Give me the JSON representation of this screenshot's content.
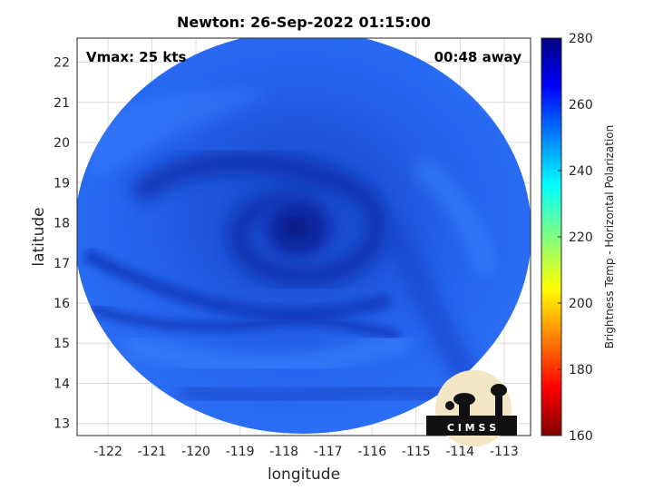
{
  "plot": {
    "title": "Newton: 26-Sep-2022 01:15:00",
    "vmax_label": "Vmax: 25 kts",
    "away_label": "00:48 away",
    "xlabel": "longitude",
    "ylabel": "latitude",
    "x_ticks": [
      "-122",
      "-121",
      "-120",
      "-119",
      "-118",
      "-117",
      "-116",
      "-115",
      "-114",
      "-113"
    ],
    "y_ticks": [
      "22",
      "21",
      "20",
      "19",
      "18",
      "17",
      "16",
      "15",
      "14",
      "13"
    ],
    "xlim": [
      -122.7,
      -112.4
    ],
    "ylim": [
      12.7,
      22.6
    ]
  },
  "colorbar": {
    "label": "Brightness Temp - Horizontal Polarization",
    "ticks": [
      "280",
      "260",
      "240",
      "220",
      "200",
      "180",
      "160"
    ],
    "range": [
      160,
      280
    ],
    "colormap": "jet"
  },
  "logo": {
    "text": "C I M S S"
  },
  "colors": {
    "deep_blue": "#0b2a9e",
    "mid_blue": "#1f5cf0",
    "light_blue": "#3a86ff"
  }
}
